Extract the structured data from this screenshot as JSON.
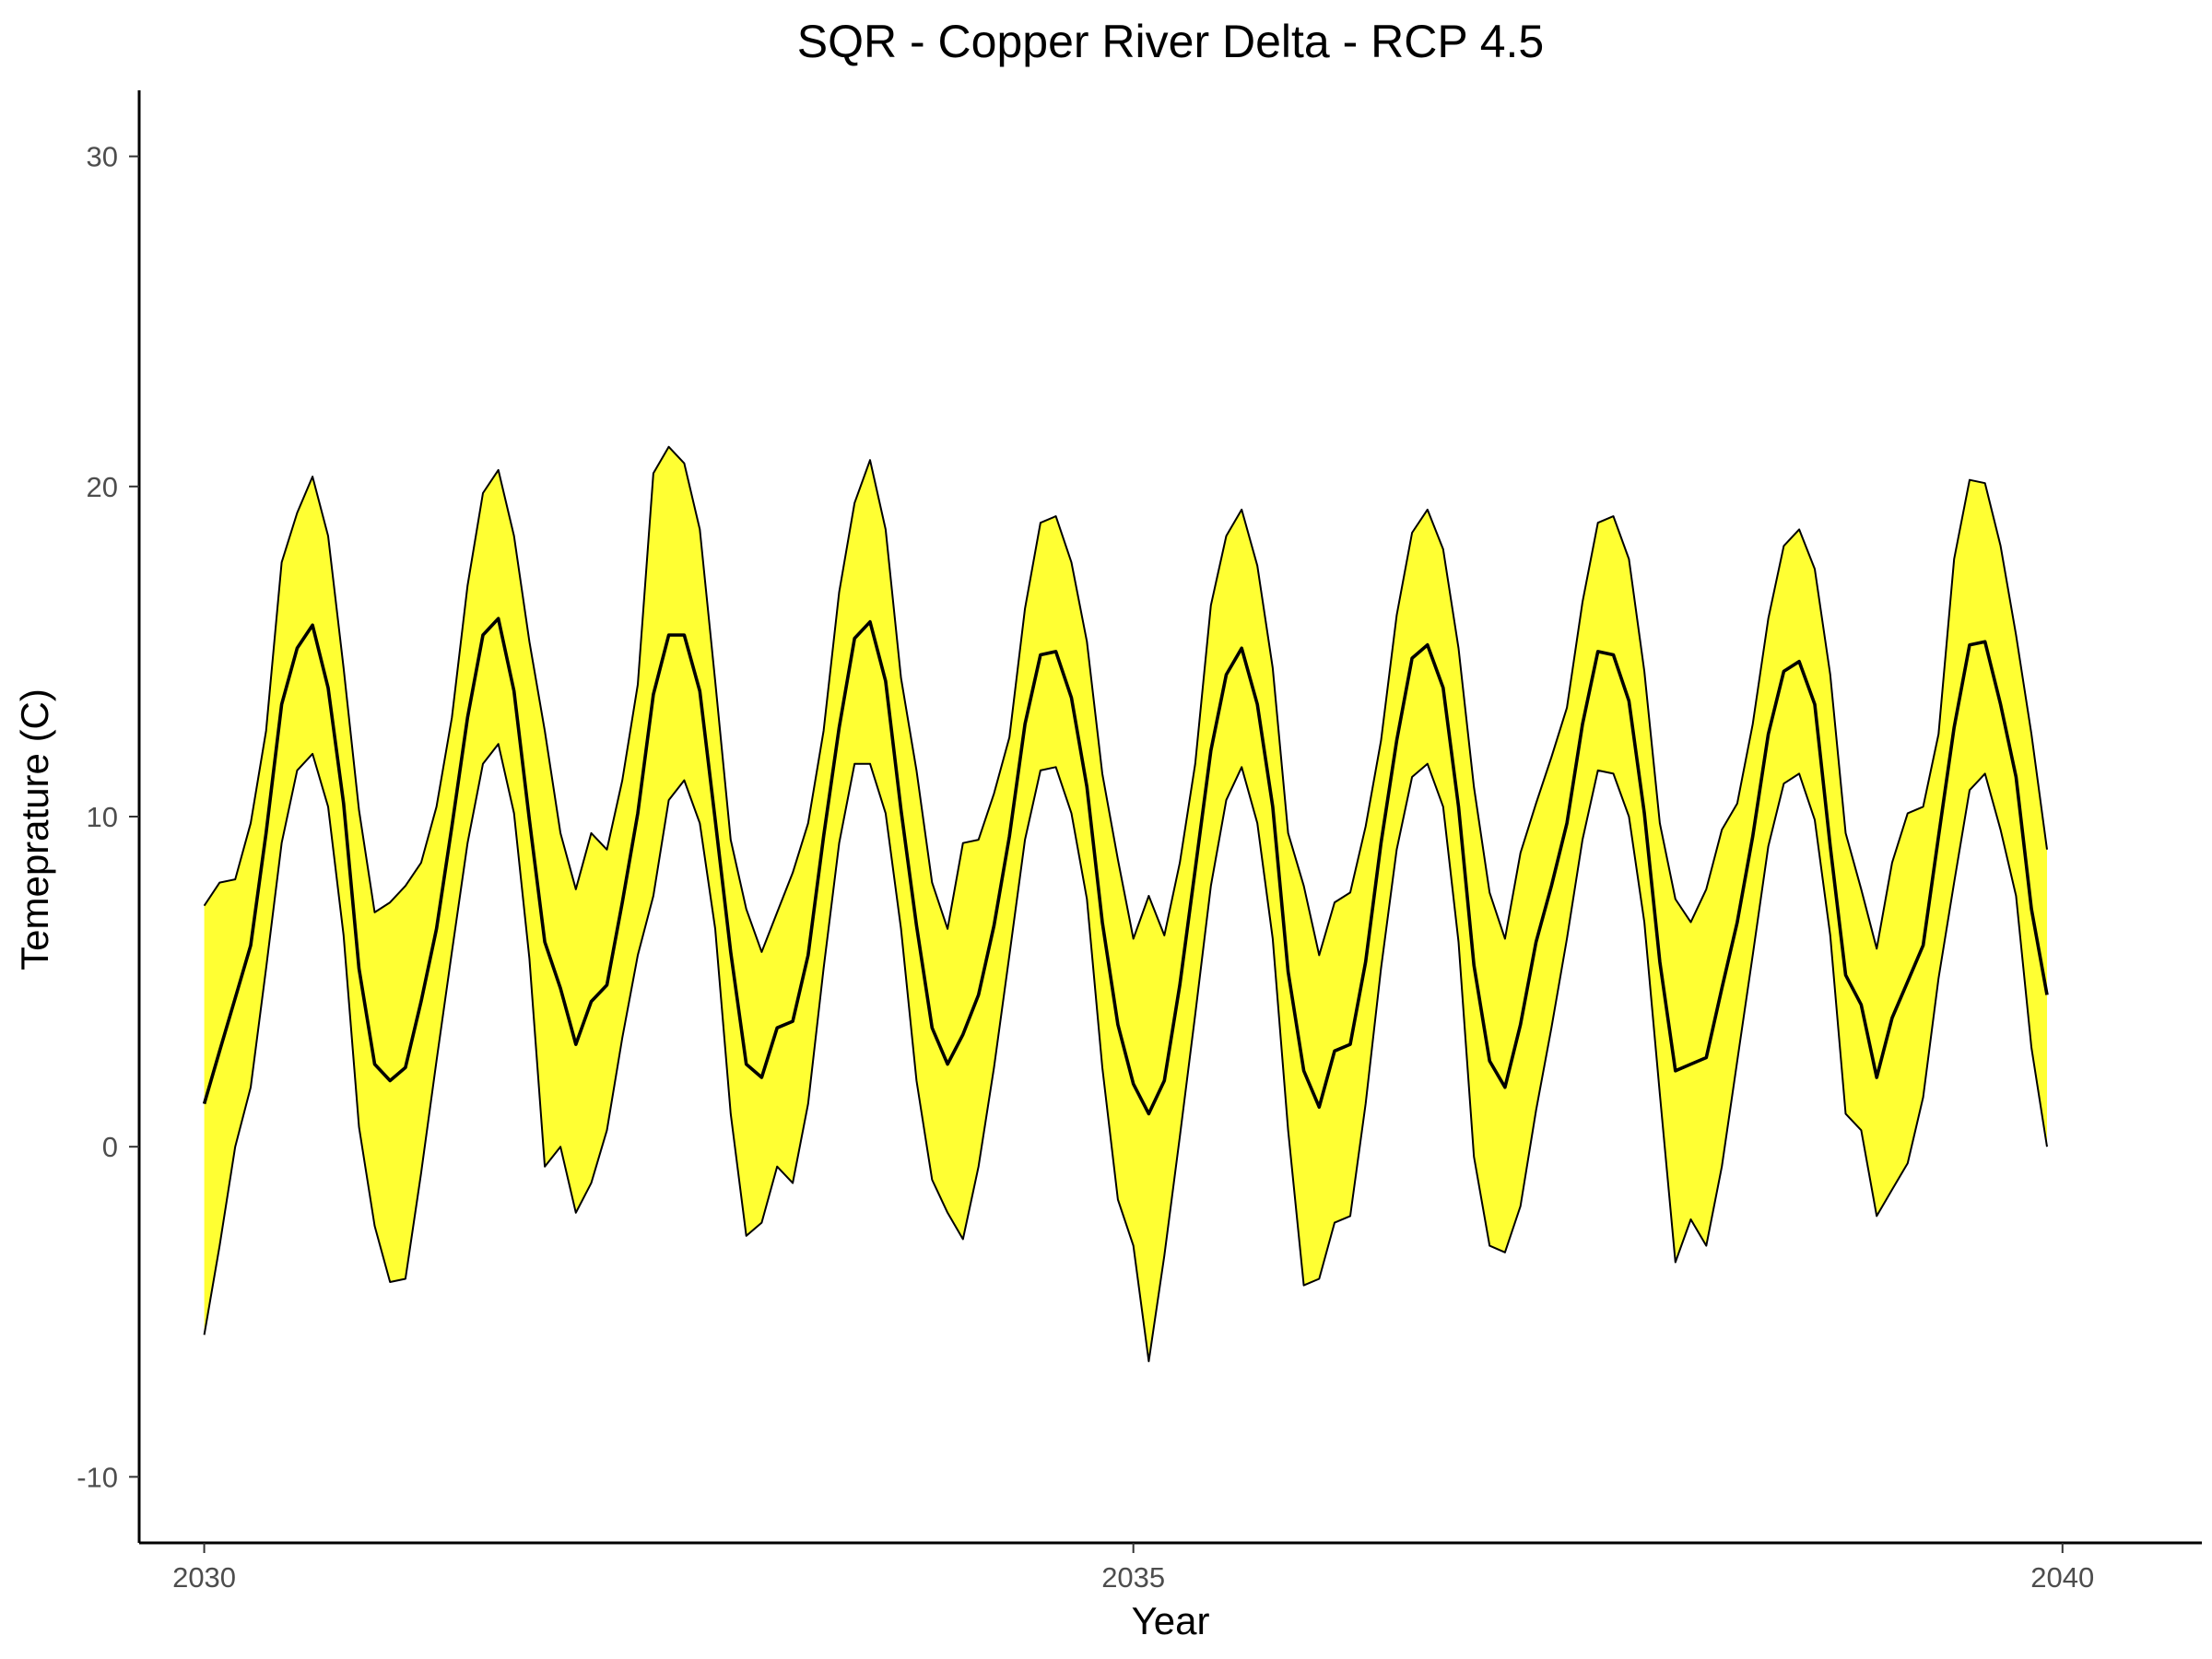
{
  "chart_data": {
    "type": "area",
    "title": "SQR - Copper River Delta - RCP 4.5",
    "xlabel": "Year",
    "ylabel": "Temeprature (C)",
    "xlim": [
      2029.65,
      2040.75
    ],
    "ylim": [
      -12,
      32
    ],
    "x_ticks": [
      {
        "value": 2030,
        "label": "2030"
      },
      {
        "value": 2035,
        "label": "2035"
      },
      {
        "value": 2040,
        "label": "2040"
      }
    ],
    "y_ticks": [
      {
        "value": -10,
        "label": "-10"
      },
      {
        "value": 0,
        "label": "0"
      },
      {
        "value": 10,
        "label": "10"
      },
      {
        "value": 20,
        "label": "20"
      },
      {
        "value": 30,
        "label": "30"
      }
    ],
    "grid": false,
    "legend": "none",
    "ribbon_fill": "#ffff33",
    "line_color": "#000000",
    "x": [
      2030.0,
      2030.083,
      2030.167,
      2030.25,
      2030.333,
      2030.417,
      2030.5,
      2030.583,
      2030.667,
      2030.75,
      2030.833,
      2030.917,
      2031.0,
      2031.083,
      2031.167,
      2031.25,
      2031.333,
      2031.417,
      2031.5,
      2031.583,
      2031.667,
      2031.75,
      2031.833,
      2031.917,
      2032.0,
      2032.083,
      2032.167,
      2032.25,
      2032.333,
      2032.417,
      2032.5,
      2032.583,
      2032.667,
      2032.75,
      2032.833,
      2032.917,
      2033.0,
      2033.083,
      2033.167,
      2033.25,
      2033.333,
      2033.417,
      2033.5,
      2033.583,
      2033.667,
      2033.75,
      2033.833,
      2033.917,
      2034.0,
      2034.083,
      2034.167,
      2034.25,
      2034.333,
      2034.417,
      2034.5,
      2034.583,
      2034.667,
      2034.75,
      2034.833,
      2034.917,
      2035.0,
      2035.083,
      2035.167,
      2035.25,
      2035.333,
      2035.417,
      2035.5,
      2035.583,
      2035.667,
      2035.75,
      2035.833,
      2035.917,
      2036.0,
      2036.083,
      2036.167,
      2036.25,
      2036.333,
      2036.417,
      2036.5,
      2036.583,
      2036.667,
      2036.75,
      2036.833,
      2036.917,
      2037.0,
      2037.083,
      2037.167,
      2037.25,
      2037.333,
      2037.417,
      2037.5,
      2037.583,
      2037.667,
      2037.75,
      2037.833,
      2037.917,
      2038.0,
      2038.083,
      2038.167,
      2038.25,
      2038.333,
      2038.417,
      2038.5,
      2038.583,
      2038.667,
      2038.75,
      2038.833,
      2038.917,
      2039.0,
      2039.083,
      2039.167,
      2039.25,
      2039.333,
      2039.417,
      2039.5,
      2039.583,
      2039.667,
      2039.75,
      2039.833,
      2039.917
    ],
    "series": [
      {
        "values": [
          1.3,
          2.9,
          4.5,
          6.1,
          9.5,
          13.4,
          15.1,
          15.8,
          13.9,
          10.4,
          5.4,
          2.5,
          2.0,
          2.4,
          4.4,
          6.6,
          9.7,
          13.0,
          15.5,
          16.0,
          13.8,
          9.9,
          6.2,
          4.8,
          3.1,
          4.4,
          4.9,
          7.4,
          10.1,
          13.7,
          15.5,
          15.5,
          13.8,
          9.9,
          5.9,
          2.5,
          2.1,
          3.6,
          3.8,
          5.8,
          9.4,
          12.7,
          15.4,
          15.9,
          14.1,
          10.2,
          6.7,
          3.6,
          2.5,
          3.4,
          4.6,
          6.7,
          9.4,
          12.8,
          14.9,
          15.0,
          13.6,
          10.9,
          6.8,
          3.7,
          1.9,
          1.0,
          2.0,
          4.9,
          8.4,
          12.0,
          14.3,
          15.1,
          13.4,
          10.3,
          5.3,
          2.3,
          1.2,
          2.9,
          3.1,
          5.6,
          9.2,
          12.3,
          14.8,
          15.2,
          13.9,
          10.3,
          5.5,
          2.6,
          1.8,
          3.7,
          6.2,
          7.9,
          9.8,
          12.8,
          15.0,
          14.9,
          13.5,
          10.1,
          5.6,
          2.3,
          2.5,
          2.7,
          4.8,
          6.8,
          9.4,
          12.5,
          14.4,
          14.7,
          13.4,
          9.1,
          5.2,
          4.3,
          2.1,
          3.9,
          5.0,
          6.1,
          9.4,
          12.7,
          15.2,
          15.3,
          13.4,
          11.2,
          7.2,
          4.6
        ]
      },
      {
        "values": [
          7.3,
          8.0,
          8.1,
          9.8,
          12.6,
          17.7,
          19.2,
          20.3,
          18.5,
          14.5,
          10.2,
          7.1,
          7.4,
          7.9,
          8.6,
          10.3,
          13.0,
          17.0,
          19.8,
          20.5,
          18.5,
          15.3,
          12.6,
          9.5,
          7.8,
          9.5,
          9.0,
          11.1,
          14.0,
          20.4,
          21.2,
          20.7,
          18.7,
          14.1,
          9.3,
          7.2,
          5.9,
          7.1,
          8.3,
          9.8,
          12.6,
          16.8,
          19.5,
          20.8,
          18.7,
          14.2,
          11.4,
          8.0,
          6.6,
          9.2,
          9.3,
          10.7,
          12.4,
          16.3,
          18.9,
          19.1,
          17.7,
          15.3,
          11.3,
          8.7,
          6.3,
          7.6,
          6.4,
          8.6,
          11.6,
          16.4,
          18.5,
          19.3,
          17.6,
          14.5,
          9.5,
          7.9,
          5.8,
          7.4,
          7.7,
          9.7,
          12.3,
          16.1,
          18.6,
          19.3,
          18.1,
          15.1,
          10.9,
          7.7,
          6.3,
          8.9,
          10.4,
          11.8,
          13.3,
          16.5,
          18.9,
          19.1,
          17.8,
          14.4,
          9.8,
          7.5,
          6.8,
          7.8,
          9.6,
          10.4,
          12.8,
          16.0,
          18.2,
          18.7,
          17.5,
          14.3,
          9.5,
          7.8,
          6.0,
          8.6,
          10.1,
          10.3,
          12.5,
          17.8,
          20.2,
          20.1,
          18.2,
          15.5,
          12.5,
          9.0
        ]
      },
      {
        "values": [
          -5.7,
          -3.0,
          0.0,
          1.8,
          5.4,
          9.2,
          11.4,
          11.9,
          10.3,
          6.4,
          0.6,
          -2.4,
          -4.1,
          -4.0,
          -0.8,
          2.6,
          5.9,
          9.2,
          11.6,
          12.2,
          10.1,
          5.7,
          -0.6,
          0.0,
          -2.0,
          -1.1,
          0.5,
          3.3,
          5.8,
          7.6,
          10.5,
          11.1,
          9.8,
          6.6,
          1.0,
          -2.7,
          -2.3,
          -0.6,
          -1.1,
          1.3,
          5.4,
          9.2,
          11.6,
          11.6,
          10.1,
          6.6,
          2.0,
          -1.0,
          -2.0,
          -2.8,
          -0.6,
          2.4,
          5.8,
          9.3,
          11.4,
          11.5,
          10.1,
          7.5,
          2.4,
          -1.6,
          -3.0,
          -6.5,
          -3.3,
          0.3,
          4.0,
          7.9,
          10.5,
          11.5,
          9.8,
          6.3,
          0.5,
          -4.2,
          -4.0,
          -2.3,
          -2.1,
          1.3,
          5.4,
          9.0,
          11.2,
          11.6,
          10.3,
          6.2,
          -0.3,
          -3.0,
          -3.2,
          -1.8,
          1.1,
          3.6,
          6.3,
          9.3,
          11.4,
          11.3,
          10.0,
          6.8,
          1.6,
          -3.5,
          -2.2,
          -3.0,
          -0.6,
          2.6,
          5.8,
          9.1,
          11.0,
          11.3,
          9.9,
          6.4,
          1.0,
          0.5,
          -2.1,
          -1.3,
          -0.5,
          1.5,
          5.1,
          8.0,
          10.8,
          11.3,
          9.6,
          7.6,
          3.0,
          0.0
        ]
      }
    ]
  }
}
